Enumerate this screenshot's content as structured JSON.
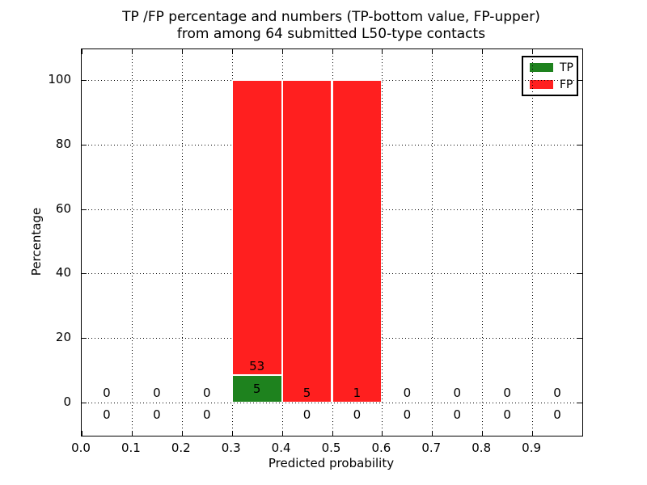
{
  "chart_data": {
    "type": "bar",
    "title_line1": "TP /FP percentage and numbers (TP-bottom value, FP-upper)",
    "title_line2": "from among 64 submitted L50-type contacts",
    "xlabel": "Predicted probability",
    "ylabel": "Percentage",
    "total_submitted_contacts": 64,
    "x_tick_labels": [
      "0.0",
      "0.1",
      "0.2",
      "0.3",
      "0.4",
      "0.5",
      "0.6",
      "0.7",
      "0.8",
      "0.9"
    ],
    "x_tick_values": [
      0.0,
      0.1,
      0.2,
      0.3,
      0.4,
      0.5,
      0.6,
      0.7,
      0.8,
      0.9
    ],
    "y_tick_labels": [
      "0",
      "20",
      "40",
      "60",
      "80",
      "100"
    ],
    "y_tick_values": [
      0,
      20,
      40,
      60,
      80,
      100
    ],
    "xlim": [
      0.0,
      1.0
    ],
    "ylim": [
      -10.3,
      109.8
    ],
    "grid": "dotted",
    "legend_position": "upper-right",
    "legend": [
      {
        "label": "TP",
        "color": "#1e821e"
      },
      {
        "label": "FP",
        "color": "#ff1f1f"
      }
    ],
    "colors": {
      "tp": "#1e821e",
      "fp": "#ff1f1f",
      "grid": "#000000",
      "text": "#000000",
      "background": "#ffffff"
    },
    "bins": [
      {
        "range": [
          0.0,
          0.1
        ],
        "tp_count": 0,
        "fp_count": 0,
        "tp_pct": 0,
        "fp_pct": 0
      },
      {
        "range": [
          0.1,
          0.2
        ],
        "tp_count": 0,
        "fp_count": 0,
        "tp_pct": 0,
        "fp_pct": 0
      },
      {
        "range": [
          0.2,
          0.3
        ],
        "tp_count": 0,
        "fp_count": 0,
        "tp_pct": 0,
        "fp_pct": 0
      },
      {
        "range": [
          0.3,
          0.4
        ],
        "tp_count": 5,
        "fp_count": 53,
        "tp_pct": 8.6,
        "fp_pct": 91.4
      },
      {
        "range": [
          0.4,
          0.5
        ],
        "tp_count": 0,
        "fp_count": 5,
        "tp_pct": 0,
        "fp_pct": 100
      },
      {
        "range": [
          0.5,
          0.6
        ],
        "tp_count": 0,
        "fp_count": 1,
        "tp_pct": 0,
        "fp_pct": 100
      },
      {
        "range": [
          0.6,
          0.7
        ],
        "tp_count": 0,
        "fp_count": 0,
        "tp_pct": 0,
        "fp_pct": 0
      },
      {
        "range": [
          0.7,
          0.8
        ],
        "tp_count": 0,
        "fp_count": 0,
        "tp_pct": 0,
        "fp_pct": 0
      },
      {
        "range": [
          0.8,
          0.9
        ],
        "tp_count": 0,
        "fp_count": 0,
        "tp_pct": 0,
        "fp_pct": 0
      },
      {
        "range": [
          0.9,
          1.0
        ],
        "tp_count": 0,
        "fp_count": 0,
        "tp_pct": 0,
        "fp_pct": 0
      }
    ]
  }
}
